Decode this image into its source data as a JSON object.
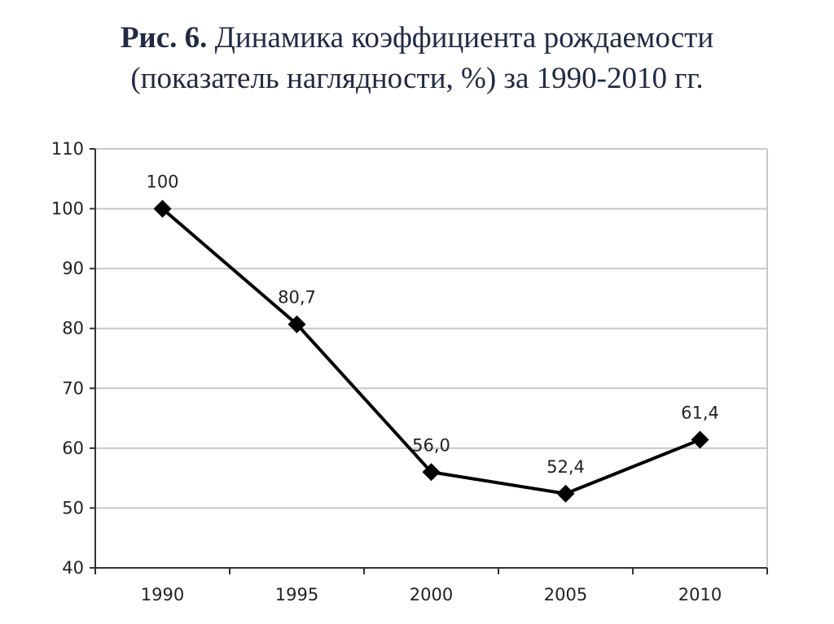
{
  "header": {
    "figure_label": "Рис. 6.",
    "title_line1": "Динамика коэффициента рождаемости",
    "title_line2": "(показатель наглядности, %) за 1990-2010 гг."
  },
  "chart_data": {
    "type": "line",
    "x": [
      "1990",
      "1995",
      "2000",
      "2005",
      "2010"
    ],
    "series": [
      {
        "values": [
          100,
          80.7,
          56.0,
          52.4,
          61.4
        ],
        "labels": [
          "100",
          "80,7",
          "56,0",
          "52,4",
          "61,4"
        ]
      }
    ],
    "y_ticks": [
      "40",
      "50",
      "60",
      "70",
      "80",
      "90",
      "100",
      "110"
    ],
    "ylim": [
      40,
      110
    ],
    "grid": "horizontal",
    "marker": "diamond",
    "colors": {
      "line": "#000000",
      "grid": "#c8c8c8",
      "axis": "#333333",
      "text": "#222222",
      "title": "#1f2a44"
    }
  }
}
